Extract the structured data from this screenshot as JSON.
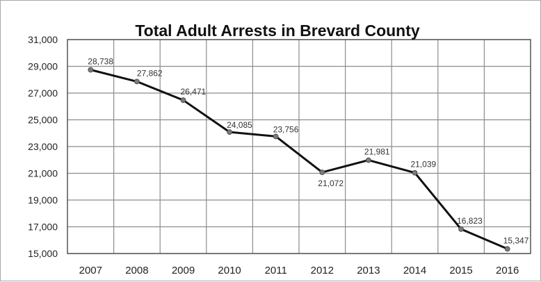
{
  "chart_data": {
    "type": "line",
    "title": "Total Adult Arrests in Brevard County",
    "xlabel": "",
    "ylabel": "",
    "categories": [
      "2007",
      "2008",
      "2009",
      "2010",
      "2011",
      "2012",
      "2013",
      "2014",
      "2015",
      "2016"
    ],
    "values": [
      28738,
      27862,
      26471,
      24085,
      23756,
      21072,
      21981,
      21039,
      16823,
      15347
    ],
    "data_labels": [
      "28,738",
      "27,862",
      "26,471",
      "24,085",
      "23,756",
      "21,072",
      "21,981",
      "21,039",
      "16,823",
      "15,347"
    ],
    "yticks": [
      15000,
      17000,
      19000,
      21000,
      23000,
      25000,
      27000,
      29000,
      31000
    ],
    "ytick_labels": [
      "15,000",
      "17,000",
      "19,000",
      "21,000",
      "23,000",
      "25,000",
      "27,000",
      "29,000",
      "31,000"
    ],
    "ylim": [
      15000,
      31000
    ],
    "grid": true,
    "legend": "none",
    "line_color": "#111111",
    "marker_color": "#7a7a7a"
  }
}
